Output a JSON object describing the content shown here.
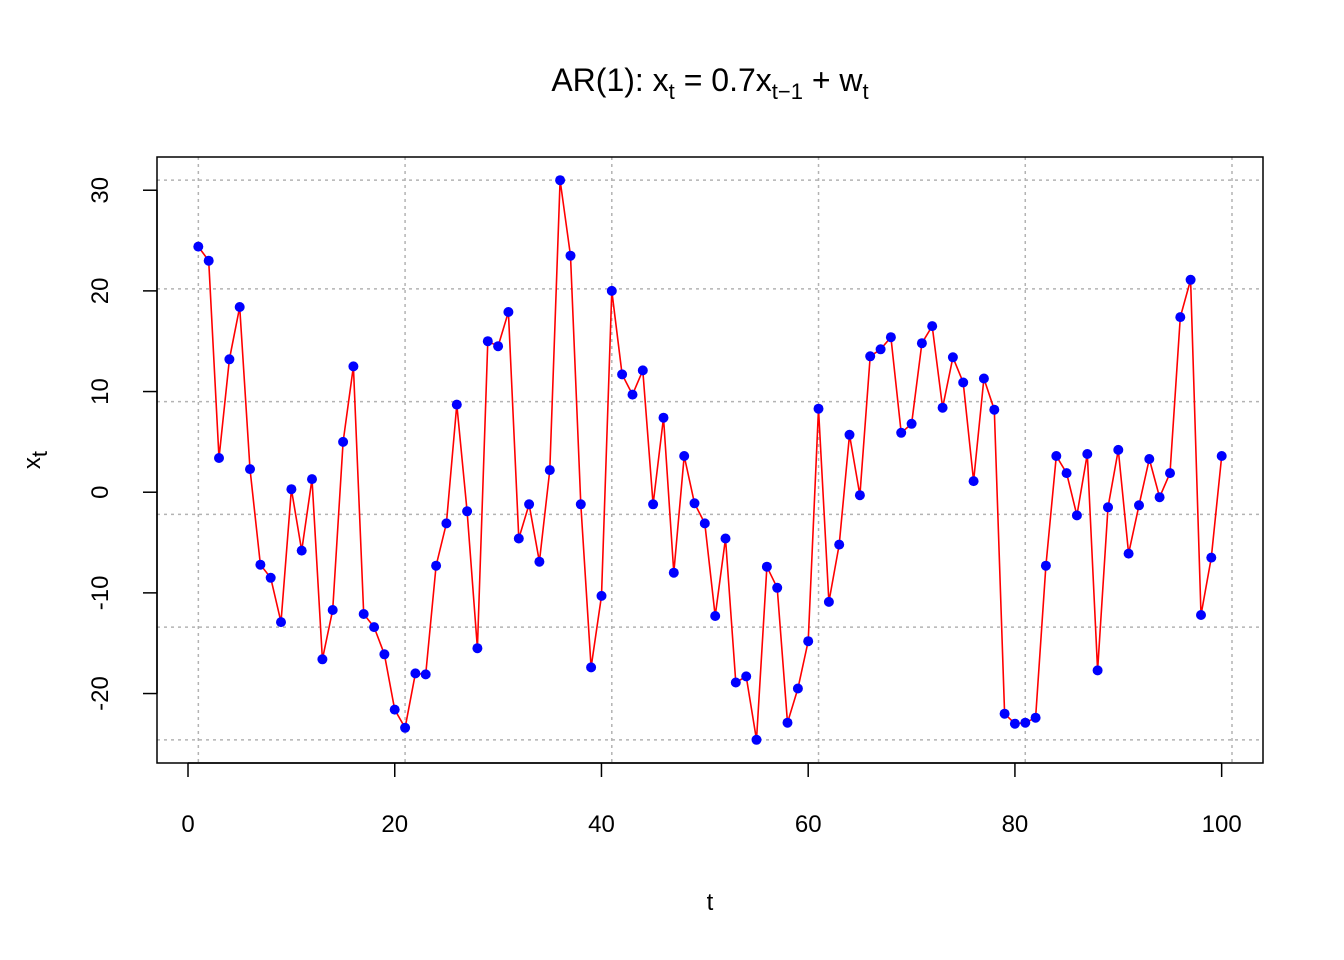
{
  "chart_data": {
    "type": "line",
    "title": {
      "prefix": "AR(1): x",
      "sub1": "t",
      "mid1": " = 0.7x",
      "sub2": "t−1",
      "mid2": " + w",
      "sub3": "t"
    },
    "xlabel": "t",
    "ylabel": {
      "base": "x",
      "sub": "t"
    },
    "xlim": [
      -3,
      104
    ],
    "ylim": [
      -26.9,
      33.3
    ],
    "x_ticks": [
      0,
      20,
      40,
      60,
      80,
      100
    ],
    "x_tick_labels": [
      "0",
      "20",
      "40",
      "60",
      "80",
      "100"
    ],
    "y_ticks": [
      -20,
      -10,
      0,
      10,
      20,
      30
    ],
    "y_tick_labels": [
      "-20",
      "-10",
      "0",
      "10",
      "20",
      "30"
    ],
    "grid": true,
    "grid_x": [
      1,
      21,
      41,
      61,
      81,
      101
    ],
    "grid_y": [
      -24.6,
      -13.4,
      -2.2,
      9.0,
      20.2,
      31.0
    ],
    "colors": {
      "line": "#ff0000",
      "points": "#0000ff",
      "grid": "#b3b3b3"
    },
    "series": [
      {
        "x": [
          1,
          2,
          3,
          4,
          5,
          6,
          7,
          8,
          9,
          10,
          11,
          12,
          13,
          14,
          15,
          16,
          17,
          18,
          19,
          20,
          21,
          22,
          23,
          24,
          25,
          26,
          27,
          28,
          29,
          30,
          31,
          32,
          33,
          34,
          35,
          36,
          37,
          38,
          39,
          40,
          41,
          42,
          43,
          44,
          45,
          46,
          47,
          48,
          49,
          50,
          51,
          52,
          53,
          54,
          55,
          56,
          57,
          58,
          59,
          60,
          61,
          62,
          63,
          64,
          65,
          66,
          67,
          68,
          69,
          70,
          71,
          72,
          73,
          74,
          75,
          76,
          77,
          78,
          79,
          80,
          81,
          82,
          83,
          84,
          85,
          86,
          87,
          88,
          89,
          90,
          91,
          92,
          93,
          94,
          95,
          96,
          97,
          98,
          99,
          100
        ],
        "values": [
          24.4,
          23.0,
          3.4,
          13.2,
          18.4,
          2.3,
          -7.2,
          -8.5,
          -12.9,
          0.3,
          -5.8,
          1.3,
          -16.6,
          -11.7,
          5.0,
          12.5,
          -12.1,
          -13.4,
          -16.1,
          -21.6,
          -23.4,
          -18.0,
          -18.1,
          -7.3,
          -3.1,
          8.7,
          -1.9,
          -15.5,
          15.0,
          14.5,
          17.9,
          -4.6,
          -1.2,
          -6.9,
          2.2,
          31.0,
          23.5,
          -1.2,
          -17.4,
          -10.3,
          20.0,
          11.7,
          9.7,
          12.1,
          -1.2,
          7.4,
          -8.0,
          3.6,
          -1.1,
          -3.1,
          -12.3,
          -4.6,
          -18.9,
          -18.3,
          -24.6,
          -7.4,
          -9.5,
          -22.9,
          -19.5,
          -14.8,
          8.3,
          -10.9,
          -5.2,
          5.7,
          -0.3,
          13.5,
          14.2,
          15.4,
          5.9,
          6.8,
          14.8,
          16.5,
          8.4,
          13.4,
          10.9,
          1.1,
          11.3,
          8.2,
          -22.0,
          -23.0,
          -22.9,
          -22.4,
          -7.3,
          3.6,
          1.9,
          -2.3,
          3.8,
          -17.7,
          -1.5,
          4.2,
          -6.1,
          -1.3,
          3.3,
          -0.5,
          1.9,
          17.4,
          21.1,
          -12.2,
          -6.5,
          3.6
        ]
      }
    ]
  }
}
